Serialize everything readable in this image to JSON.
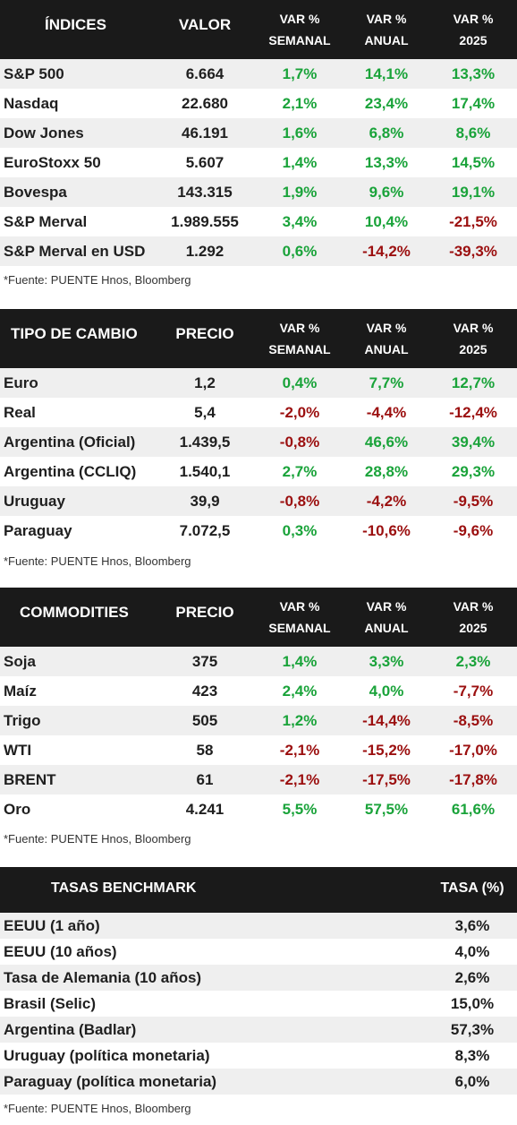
{
  "sections": [
    {
      "id": "indices",
      "headers": [
        "ÍNDICES",
        "VALOR",
        "VAR %\nSEMANAL",
        "VAR %\nANUAL",
        "VAR %\n2025"
      ],
      "rows": [
        [
          "S&P 500",
          "6.664",
          "1,7%",
          "14,1%",
          "13,3%"
        ],
        [
          "Nasdaq",
          "22.680",
          "2,1%",
          "23,4%",
          "17,4%"
        ],
        [
          "Dow Jones",
          "46.191",
          "1,6%",
          "6,8%",
          "8,6%"
        ],
        [
          "EuroStoxx 50",
          "5.607",
          "1,4%",
          "13,3%",
          "14,5%"
        ],
        [
          "Bovespa",
          "143.315",
          "1,9%",
          "9,6%",
          "19,1%"
        ],
        [
          "S&P Merval",
          "1.989.555",
          "3,4%",
          "10,4%",
          "-21,5%"
        ],
        [
          "S&P Merval en USD",
          "1.292",
          "0,6%",
          "-14,2%",
          "-39,3%"
        ]
      ],
      "note": "*Fuente: PUENTE Hnos, Bloomberg"
    },
    {
      "id": "tipo-cambio",
      "headers": [
        "TIPO DE CAMBIO",
        "PRECIO",
        "VAR %\nSEMANAL",
        "VAR %\nANUAL",
        "VAR %\n2025"
      ],
      "rows": [
        [
          "Euro",
          "1,2",
          "0,4%",
          "7,7%",
          "12,7%"
        ],
        [
          "Real",
          "5,4",
          "-2,0%",
          "-4,4%",
          "-12,4%"
        ],
        [
          "Argentina (Oficial)",
          "1.439,5",
          "-0,8%",
          "46,6%",
          "39,4%"
        ],
        [
          "Argentina (CCLIQ)",
          "1.540,1",
          "2,7%",
          "28,8%",
          "29,3%"
        ],
        [
          "Uruguay",
          "39,9",
          "-0,8%",
          "-4,2%",
          "-9,5%"
        ],
        [
          "Paraguay",
          "7.072,5",
          "0,3%",
          "-10,6%",
          "-9,6%"
        ]
      ],
      "note": "*Fuente: PUENTE Hnos, Bloomberg"
    },
    {
      "id": "commodities",
      "headers": [
        "COMMODITIES",
        "PRECIO",
        "VAR %\nSEMANAL",
        "VAR %\nANUAL",
        "VAR %\n2025"
      ],
      "rows": [
        [
          "Soja",
          "375",
          "1,4%",
          "3,3%",
          "2,3%"
        ],
        [
          "Maíz",
          "423",
          "2,4%",
          "4,0%",
          "-7,7%"
        ],
        [
          "Trigo",
          "505",
          "1,2%",
          "-14,4%",
          "-8,5%"
        ],
        [
          "WTI",
          "58",
          "-2,1%",
          "-15,2%",
          "-17,0%"
        ],
        [
          "BRENT",
          "61",
          "-2,1%",
          "-17,5%",
          "-17,8%"
        ],
        [
          "Oro",
          "4.241",
          "5,5%",
          "57,5%",
          "61,6%"
        ]
      ],
      "note": "*Fuente: PUENTE Hnos, Bloomberg"
    },
    {
      "id": "tasas",
      "headers": [
        "TASAS BENCHMARK",
        "TASA (%)"
      ],
      "rows": [
        [
          "EEUU (1 año)",
          "3,6%"
        ],
        [
          "EEUU (10 años)",
          "4,0%"
        ],
        [
          "Tasa de Alemania (10 años)",
          "2,6%"
        ],
        [
          "Brasil (Selic)",
          "15,0%"
        ],
        [
          "Argentina (Badlar)",
          "57,3%"
        ],
        [
          "Uruguay (política monetaria)",
          "8,3%"
        ],
        [
          "Paraguay (política monetaria)",
          "6,0%"
        ]
      ],
      "note": "*Fuente: PUENTE Hnos, Bloomberg"
    }
  ],
  "colors": {
    "header_bg": "#1a1a1a",
    "alt_row": "#efefef",
    "positive": "#1aa33a",
    "negative": "#9b0f0f"
  }
}
